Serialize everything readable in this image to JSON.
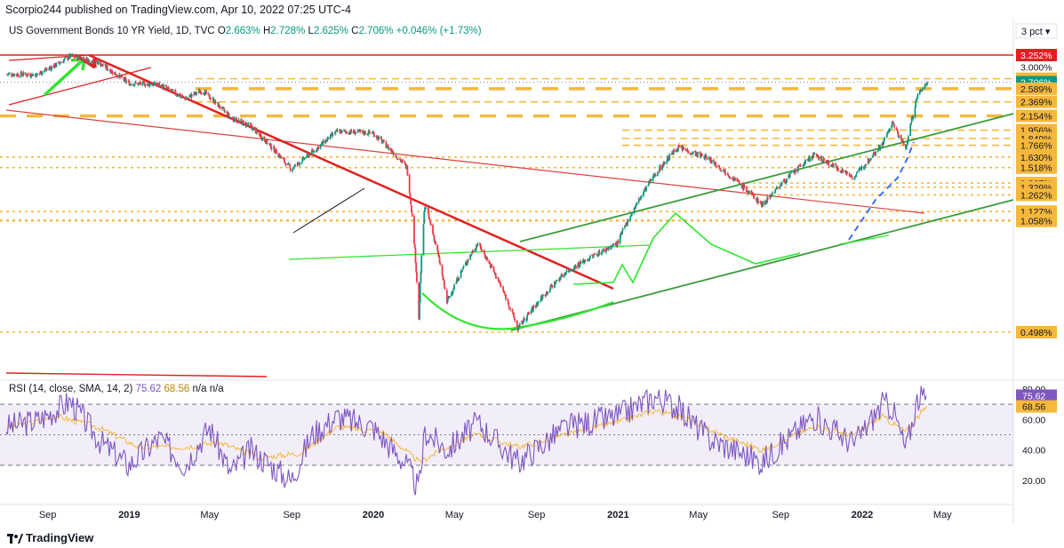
{
  "header": {
    "publish_line": "Scorpio244 published on TradingView.com, Apr 10, 2022 07:25 UTC-4"
  },
  "legend": {
    "symbol": "US Government Bonds 10 YR Yield, 1D, TVC",
    "o_label": "O",
    "o_value": "2.663%",
    "h_label": "H",
    "h_value": "2.728%",
    "l_label": "L",
    "l_value": "2.625%",
    "c_label": "C",
    "c_value": "2.706%",
    "change": "+0.046% (+1.73%)"
  },
  "scale_button": "3 pct ▾",
  "rsi": {
    "label": "RSI (14, close, SMA, 14, 2)",
    "rsi_value": "75.62",
    "sma_value": "68.56",
    "extra": "n/a  n/a"
  },
  "footer": {
    "brand": "TradingView"
  },
  "colors": {
    "up": "#089981",
    "down": "#f23645",
    "gold": "#f5b83d",
    "green_line": "#3a9c3a",
    "bright_green": "#2ee62e",
    "red_line": "#e02020",
    "rsi_line": "#7e57c2",
    "rsi_sma": "#f5b83d"
  },
  "chart_data": [
    {
      "type": "candlestick",
      "title": "US Government Bonds 10 YR Yield, 1D, TVC",
      "x_tick_labels": [
        "Sep",
        "2019",
        "May",
        "Sep",
        "2020",
        "May",
        "Sep",
        "2021",
        "May",
        "Sep",
        "2022",
        "May"
      ],
      "price_labels": [
        {
          "value": "3.252%",
          "style": "red"
        },
        {
          "value": "3.000%",
          "style": "plain"
        },
        {
          "value": "2.771%",
          "style": "gold"
        },
        {
          "value": "2.706%",
          "style": "current"
        },
        {
          "value": "2.589%",
          "style": "gold"
        },
        {
          "value": "2.369%",
          "style": "gold"
        },
        {
          "value": "2.154%",
          "style": "gold"
        },
        {
          "value": "1.956%",
          "style": "gold"
        },
        {
          "value": "1.849%",
          "style": "gold"
        },
        {
          "value": "1.766%",
          "style": "gold"
        },
        {
          "value": "1.630%",
          "style": "gold"
        },
        {
          "value": "1.518%",
          "style": "gold"
        },
        {
          "value": "1.367%",
          "style": "gold"
        },
        {
          "value": "1.329%",
          "style": "gold"
        },
        {
          "value": "1.262%",
          "style": "gold"
        },
        {
          "value": "1.127%",
          "style": "gold"
        },
        {
          "value": "1.063%",
          "style": "gold"
        },
        {
          "value": "1.058%",
          "style": "gold"
        },
        {
          "value": "0.498%",
          "style": "gold"
        }
      ],
      "close_path": [
        [
          "2018-07-01",
          2.86
        ],
        [
          "2018-08-15",
          2.85
        ],
        [
          "2018-09-15",
          3.05
        ],
        [
          "2018-10-05",
          3.23
        ],
        [
          "2018-11-15",
          3.1
        ],
        [
          "2018-12-31",
          2.69
        ],
        [
          "2019-02-15",
          2.66
        ],
        [
          "2019-03-25",
          2.42
        ],
        [
          "2019-04-20",
          2.56
        ],
        [
          "2019-06-01",
          2.13
        ],
        [
          "2019-07-01",
          2.01
        ],
        [
          "2019-08-31",
          1.5
        ],
        [
          "2019-10-01",
          1.68
        ],
        [
          "2019-11-08",
          1.94
        ],
        [
          "2019-12-31",
          1.92
        ],
        [
          "2020-02-20",
          1.52
        ],
        [
          "2020-03-09",
          0.54
        ],
        [
          "2020-03-18",
          1.18
        ],
        [
          "2020-04-20",
          0.61
        ],
        [
          "2020-06-05",
          0.91
        ],
        [
          "2020-08-04",
          0.51
        ],
        [
          "2020-10-15",
          0.75
        ],
        [
          "2020-12-31",
          0.91
        ],
        [
          "2021-02-25",
          1.45
        ],
        [
          "2021-03-31",
          1.74
        ],
        [
          "2021-05-15",
          1.62
        ],
        [
          "2021-08-04",
          1.18
        ],
        [
          "2021-10-20",
          1.65
        ],
        [
          "2021-12-20",
          1.42
        ],
        [
          "2022-01-31",
          1.78
        ],
        [
          "2022-02-15",
          2.05
        ],
        [
          "2022-03-07",
          1.72
        ],
        [
          "2022-03-25",
          2.48
        ],
        [
          "2022-04-08",
          2.706
        ]
      ],
      "ohlc_last": {
        "open": 2.663,
        "high": 2.728,
        "low": 2.625,
        "close": 2.706,
        "change": 0.046,
        "change_pct": 1.73
      }
    },
    {
      "type": "line",
      "title": "RSI (14, close, SMA, 14, 2)",
      "y_tick_labels": [
        "80.00",
        "60.00",
        "40.00",
        "20.00"
      ],
      "levels": [
        70,
        50,
        30
      ],
      "series": [
        {
          "name": "RSI",
          "last": 75.62,
          "path": [
            [
              "2018-07-01",
              55
            ],
            [
              "2018-08-20",
              60
            ],
            [
              "2018-10-05",
              72
            ],
            [
              "2018-11-20",
              45
            ],
            [
              "2018-12-31",
              30
            ],
            [
              "2019-02-15",
              48
            ],
            [
              "2019-03-25",
              30
            ],
            [
              "2019-05-01",
              55
            ],
            [
              "2019-06-01",
              25
            ],
            [
              "2019-07-01",
              40
            ],
            [
              "2019-08-31",
              20
            ],
            [
              "2019-10-01",
              50
            ],
            [
              "2019-11-08",
              62
            ],
            [
              "2019-12-31",
              55
            ],
            [
              "2020-02-20",
              30
            ],
            [
              "2020-03-09",
              14
            ],
            [
              "2020-03-18",
              52
            ],
            [
              "2020-04-20",
              40
            ],
            [
              "2020-06-05",
              58
            ],
            [
              "2020-08-04",
              32
            ],
            [
              "2020-10-15",
              55
            ],
            [
              "2020-12-31",
              62
            ],
            [
              "2021-02-25",
              75
            ],
            [
              "2021-03-31",
              68
            ],
            [
              "2021-05-15",
              48
            ],
            [
              "2021-08-04",
              32
            ],
            [
              "2021-10-20",
              62
            ],
            [
              "2021-12-20",
              44
            ],
            [
              "2022-01-31",
              70
            ],
            [
              "2022-02-15",
              68
            ],
            [
              "2022-03-07",
              40
            ],
            [
              "2022-03-25",
              74
            ],
            [
              "2022-04-08",
              75.62
            ]
          ]
        },
        {
          "name": "SMA",
          "last": 68.56,
          "path": [
            [
              "2018-07-01",
              54
            ],
            [
              "2018-09-15",
              62
            ],
            [
              "2018-11-15",
              55
            ],
            [
              "2019-01-15",
              42
            ],
            [
              "2019-03-25",
              42
            ],
            [
              "2019-05-15",
              45
            ],
            [
              "2019-07-15",
              35
            ],
            [
              "2019-09-15",
              38
            ],
            [
              "2019-11-08",
              55
            ],
            [
              "2020-01-15",
              52
            ],
            [
              "2020-03-10",
              32
            ],
            [
              "2020-04-20",
              42
            ],
            [
              "2020-06-05",
              50
            ],
            [
              "2020-08-04",
              42
            ],
            [
              "2020-10-15",
              50
            ],
            [
              "2020-12-31",
              58
            ],
            [
              "2021-02-25",
              66
            ],
            [
              "2021-04-15",
              60
            ],
            [
              "2021-06-15",
              48
            ],
            [
              "2021-08-04",
              40
            ],
            [
              "2021-10-20",
              55
            ],
            [
              "2021-12-20",
              50
            ],
            [
              "2022-01-31",
              62
            ],
            [
              "2022-03-07",
              52
            ],
            [
              "2022-03-25",
              62
            ],
            [
              "2022-04-08",
              68.56
            ]
          ]
        }
      ]
    }
  ]
}
